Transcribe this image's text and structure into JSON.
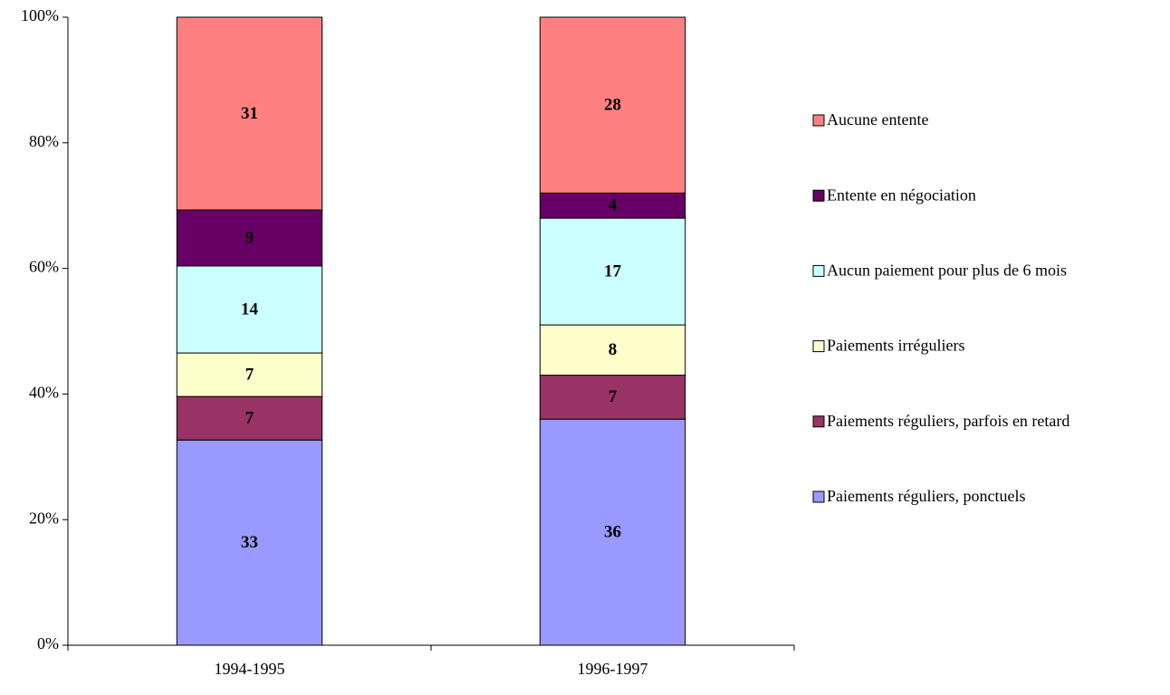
{
  "chart_data": {
    "type": "bar",
    "stack": "percent",
    "categories": [
      "1994-1995",
      "1996-1997"
    ],
    "series": [
      {
        "name": "Paiements réguliers, ponctuels",
        "color": "#9999ff",
        "values": [
          33,
          36
        ]
      },
      {
        "name": "Paiements réguliers, parfois en retard",
        "color": "#993366",
        "values": [
          7,
          7
        ]
      },
      {
        "name": "Paiements irréguliers",
        "color": "#ffffcc",
        "values": [
          7,
          8
        ]
      },
      {
        "name": "Aucun paiement pour plus de 6 mois",
        "color": "#ccffff",
        "values": [
          14,
          17
        ]
      },
      {
        "name": "Entente en négociation",
        "color": "#660066",
        "values": [
          9,
          4
        ]
      },
      {
        "name": "Aucune entente",
        "color": "#ff8080",
        "values": [
          31,
          28
        ]
      }
    ],
    "ylim": [
      0,
      100
    ],
    "yticks": [
      {
        "value": 0,
        "label": "0%"
      },
      {
        "value": 20,
        "label": "20%"
      },
      {
        "value": 40,
        "label": "40%"
      },
      {
        "value": 60,
        "label": "60%"
      },
      {
        "value": 80,
        "label": "80%"
      },
      {
        "value": 100,
        "label": "100%"
      }
    ],
    "legend": "right"
  }
}
